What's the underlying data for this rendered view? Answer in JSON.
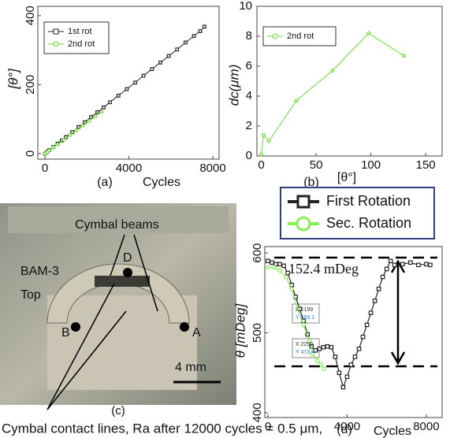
{
  "chart_data": [
    {
      "type": "line",
      "panel_label": "(a)",
      "xlabel": "Cycles",
      "ylabel": "[θ°]",
      "xlim": [
        -340,
        8300
      ],
      "ylim": [
        -16,
        427
      ],
      "xticks": [
        0,
        4000,
        8000
      ],
      "yticks": [
        0,
        200,
        400
      ],
      "legend": "upper-left",
      "series": [
        {
          "name": "1st rot",
          "color": "#222222",
          "marker": "square",
          "x": [
            0,
            100,
            200,
            400,
            600,
            800,
            1000,
            1300,
            1600,
            1900,
            2200,
            2500,
            2800,
            3100,
            3500,
            3900,
            4300,
            4700,
            5100,
            5500,
            5900,
            6300,
            6700,
            7100,
            7400,
            7600
          ],
          "values": [
            0,
            5,
            10,
            19,
            29,
            38,
            48,
            62,
            77,
            91,
            106,
            120,
            134,
            149,
            168,
            187,
            206,
            226,
            245,
            264,
            283,
            302,
            322,
            341,
            355,
            368
          ]
        },
        {
          "name": "2nd rot",
          "color": "#66dd33",
          "marker": "circle",
          "x": [
            0,
            100,
            200,
            400,
            600,
            900,
            1200,
            1500,
            1800,
            2100,
            2400,
            2700
          ],
          "values": [
            0,
            4,
            9,
            18,
            27,
            40,
            54,
            67,
            81,
            94,
            108,
            121
          ]
        }
      ]
    },
    {
      "type": "line",
      "panel_label": "(b)",
      "xlabel": "[θ°]",
      "ylabel": "dc(μm)",
      "xlim": [
        -4,
        165
      ],
      "ylim": [
        0,
        10
      ],
      "xticks": [
        0,
        50,
        100,
        150
      ],
      "yticks": [
        0,
        2,
        4,
        6,
        8,
        10
      ],
      "legend": "upper-left",
      "series": [
        {
          "name": "2nd rot",
          "color": "#66dd33",
          "marker": "circle",
          "x": [
            0,
            2,
            7,
            32,
            65,
            98,
            130
          ],
          "values": [
            0.1,
            1.4,
            1.0,
            3.7,
            5.7,
            8.2,
            6.7
          ]
        }
      ]
    },
    {
      "type": "line",
      "panel_label": "(d)",
      "xlabel": "Cycles",
      "ylabel": "θ [mDeg]",
      "xlim": [
        -160,
        8800
      ],
      "ylim": [
        394,
        608
      ],
      "xticks": [
        0,
        4000,
        8000
      ],
      "yticks": [
        400,
        500,
        600
      ],
      "legend": "above",
      "annotations": [
        "152.4 mDeg",
        "X 2199",
        "Y 483.1",
        "X 2250",
        "Y 473.4"
      ],
      "series": [
        {
          "name": "First Rotation",
          "color": "#222222",
          "marker": "square",
          "x": [
            0,
            200,
            400,
            600,
            800,
            1000,
            1200,
            1400,
            1600,
            1800,
            2000,
            2199,
            2400,
            2600,
            2800,
            3000,
            3200,
            3400,
            3600,
            3800,
            4000,
            4200,
            4400,
            4600,
            4800,
            5000,
            5200,
            5400,
            5600,
            5800,
            6000,
            6200,
            6400,
            6800,
            7200,
            7600,
            8000,
            8200
          ],
          "values": [
            590,
            588,
            586,
            586,
            584,
            575,
            560,
            545,
            530,
            515,
            498,
            483.1,
            478,
            480,
            482,
            483,
            482,
            470,
            450,
            432,
            445,
            460,
            470,
            480,
            495,
            510,
            525,
            540,
            555,
            570,
            580,
            590,
            585,
            586,
            588,
            585,
            586,
            585
          ]
        },
        {
          "name": "Sec. Rotation",
          "color": "#88ee55",
          "marker": "circle",
          "x": [
            0,
            300,
            600,
            900,
            1200,
            1500,
            1800,
            2100,
            2250,
            2500,
            2700,
            2850
          ],
          "values": [
            582,
            582,
            578,
            570,
            555,
            530,
            510,
            490,
            473.4,
            465,
            460,
            455
          ]
        }
      ]
    }
  ],
  "photo": {
    "labels": [
      "Cymbal beams",
      "D",
      "BAM-3",
      "Top",
      "B",
      "A",
      "4 mm"
    ],
    "panel_label": "(c)"
  },
  "caption": "Cymbal contact lines, Ra after 12000 cycles = 0.5 μm,"
}
